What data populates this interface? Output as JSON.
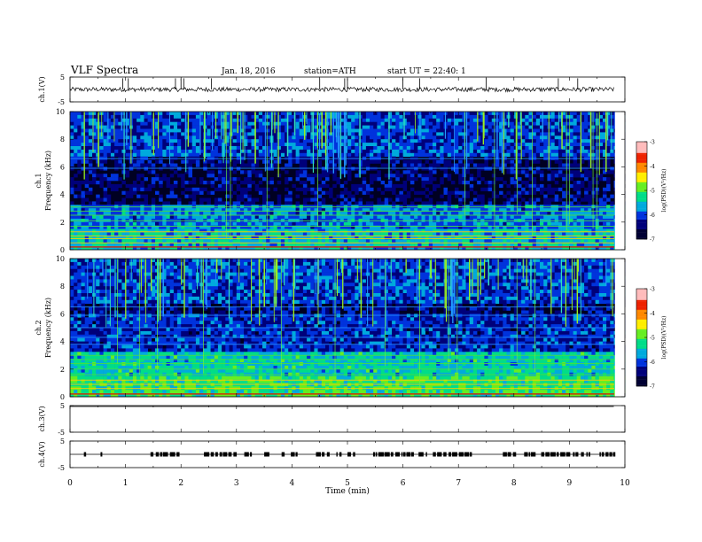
{
  "header": {
    "title": "VLF Spectra",
    "date": "Jan. 18, 2016",
    "station": "station=ATH",
    "start": "start UT =  22:40: 1"
  },
  "chart_data": [
    {
      "type": "line",
      "name": "ch1-voltage",
      "ylabel": "ch.1(V)",
      "ylim": [
        -5,
        5
      ],
      "y_ticks": [
        "5",
        "-5"
      ],
      "baseline": 0,
      "noise_amplitude": 0.3,
      "spikes": [
        0.95,
        1.05,
        1.9,
        2.0,
        2.05,
        2.55,
        4.5,
        4.95,
        5.0,
        6.0,
        6.3,
        7.5,
        8.8,
        9.15
      ]
    },
    {
      "type": "heatmap",
      "name": "ch1-spectrogram",
      "ylabel": "ch.1\nFrequency (kHz)",
      "xlim": [
        0,
        10
      ],
      "ylim": [
        0,
        10
      ],
      "y_ticks": [
        "0",
        "2",
        "4",
        "6",
        "8",
        "10"
      ],
      "horizontal_lines_khz": [
        0.2,
        0.5,
        0.8,
        1.0,
        1.3,
        1.7,
        2.1,
        2.5,
        2.8,
        3.1,
        5.9,
        6.6
      ],
      "colorbar": {
        "label": "log(PSD)(V²/Hz)",
        "ticks": [
          "-3",
          "-4",
          "-5",
          "-6",
          "-7"
        ],
        "range": [
          -7,
          -3
        ]
      }
    },
    {
      "type": "heatmap",
      "name": "ch2-spectrogram",
      "ylabel": "ch.2\nFrequency (kHz)",
      "xlim": [
        0,
        10
      ],
      "ylim": [
        0,
        10
      ],
      "y_ticks": [
        "0",
        "2",
        "4",
        "6",
        "8",
        "10"
      ],
      "horizontal_lines_khz": [
        0.2,
        0.6,
        0.9,
        1.2,
        1.6,
        2.0,
        2.4,
        2.7,
        3.0,
        3.8,
        4.3,
        5.0,
        5.9,
        6.5
      ],
      "colorbar": {
        "label": "log(PSD)(V²/Hz)",
        "ticks": [
          "-3",
          "-4",
          "-5",
          "-6",
          "-7"
        ],
        "range": [
          -7,
          -3
        ]
      }
    },
    {
      "type": "line",
      "name": "ch3-voltage",
      "ylabel": "ch.3(V)",
      "ylim": [
        -5,
        5
      ],
      "y_ticks": [
        "5",
        "-5"
      ],
      "baseline": 5
    },
    {
      "type": "line",
      "name": "ch4-voltage",
      "ylabel": "ch.4(V)",
      "ylim": [
        -5,
        5
      ],
      "y_ticks": [
        "5",
        "-5"
      ],
      "baseline": 0,
      "pulse_ranges": [
        [
          0.25,
          0.28
        ],
        [
          0.55,
          0.62
        ],
        [
          1.45,
          1.75
        ],
        [
          1.8,
          2.05
        ],
        [
          2.3,
          3.3
        ],
        [
          3.5,
          4.1
        ],
        [
          4.3,
          4.65
        ],
        [
          4.8,
          5.15
        ],
        [
          5.4,
          9.8
        ]
      ]
    }
  ],
  "x_axis": {
    "label": "Time (min)",
    "xlim": [
      0,
      10
    ],
    "ticks": [
      "0",
      "1",
      "2",
      "3",
      "4",
      "5",
      "6",
      "7",
      "8",
      "9",
      "10"
    ]
  },
  "colors": {
    "background": "#000022",
    "colormap": [
      "#000033",
      "#00007a",
      "#0033dd",
      "#00aadd",
      "#00dd88",
      "#66ee22",
      "#ffee00",
      "#ff8800",
      "#ee2200",
      "#ffbbbb"
    ]
  }
}
